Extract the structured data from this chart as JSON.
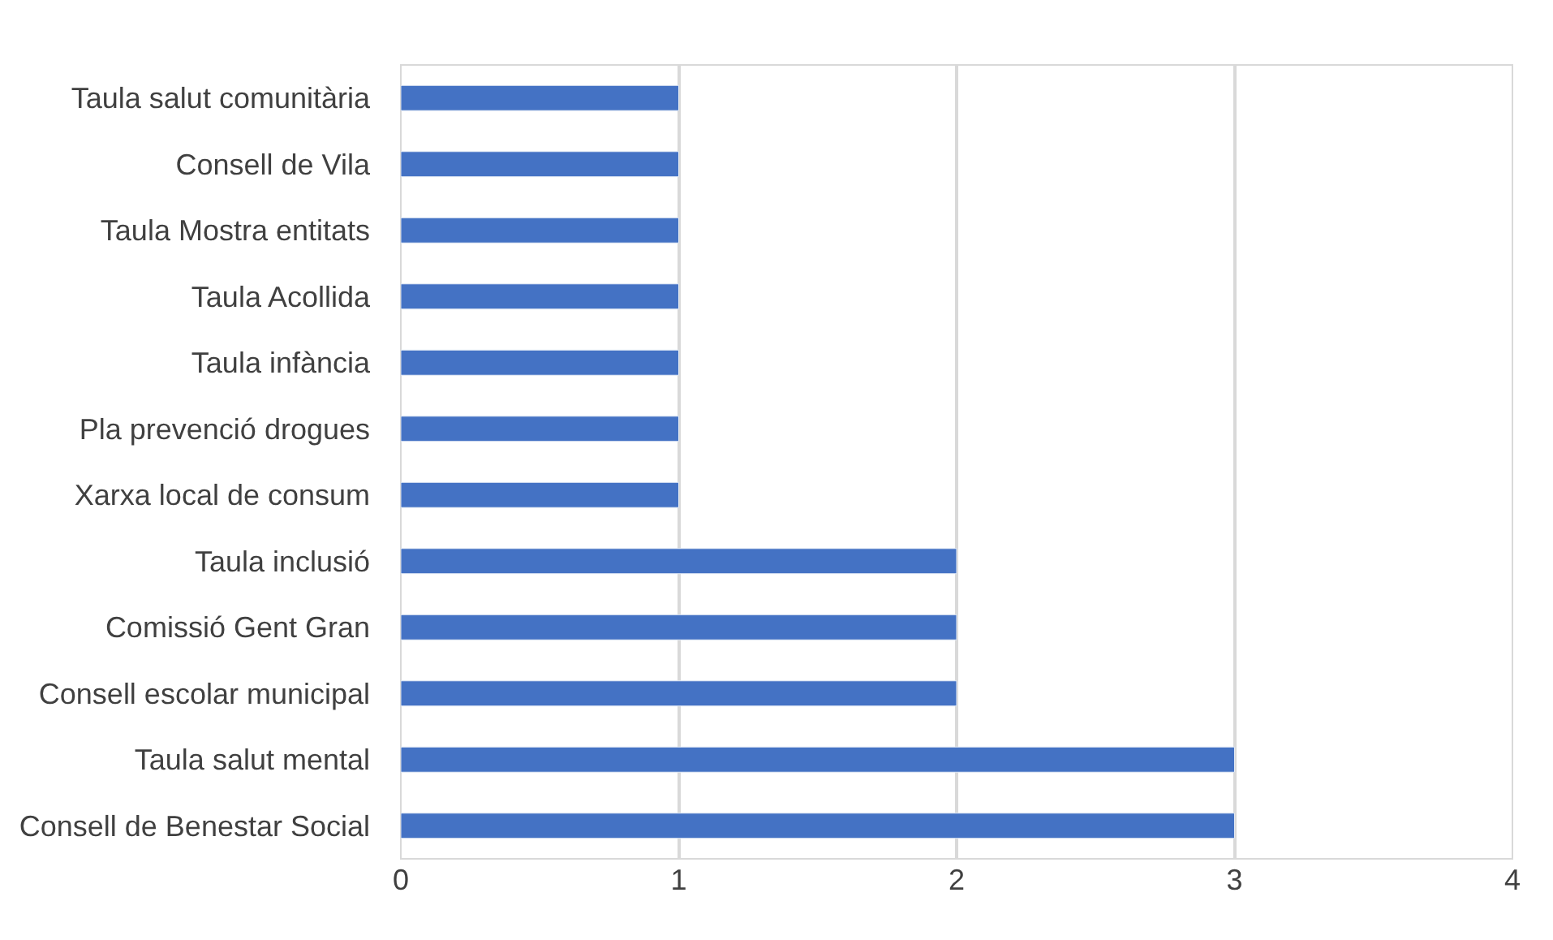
{
  "chart_data": {
    "type": "bar",
    "orientation": "horizontal",
    "categories": [
      "Taula salut comunitària",
      "Consell de Vila",
      "Taula Mostra entitats",
      "Taula Acollida",
      "Taula infància",
      "Pla prevenció drogues",
      "Xarxa local de consum",
      "Taula inclusió",
      "Comissió Gent Gran",
      "Consell escolar municipal",
      "Taula salut mental",
      "Consell de Benestar Social"
    ],
    "values": [
      1,
      1,
      1,
      1,
      1,
      1,
      1,
      2,
      2,
      2,
      3,
      3
    ],
    "color": "#4472c4",
    "xlim": [
      0,
      4
    ],
    "xticks": [
      0,
      1,
      2,
      3,
      4
    ],
    "grid": "x",
    "legend": false
  }
}
